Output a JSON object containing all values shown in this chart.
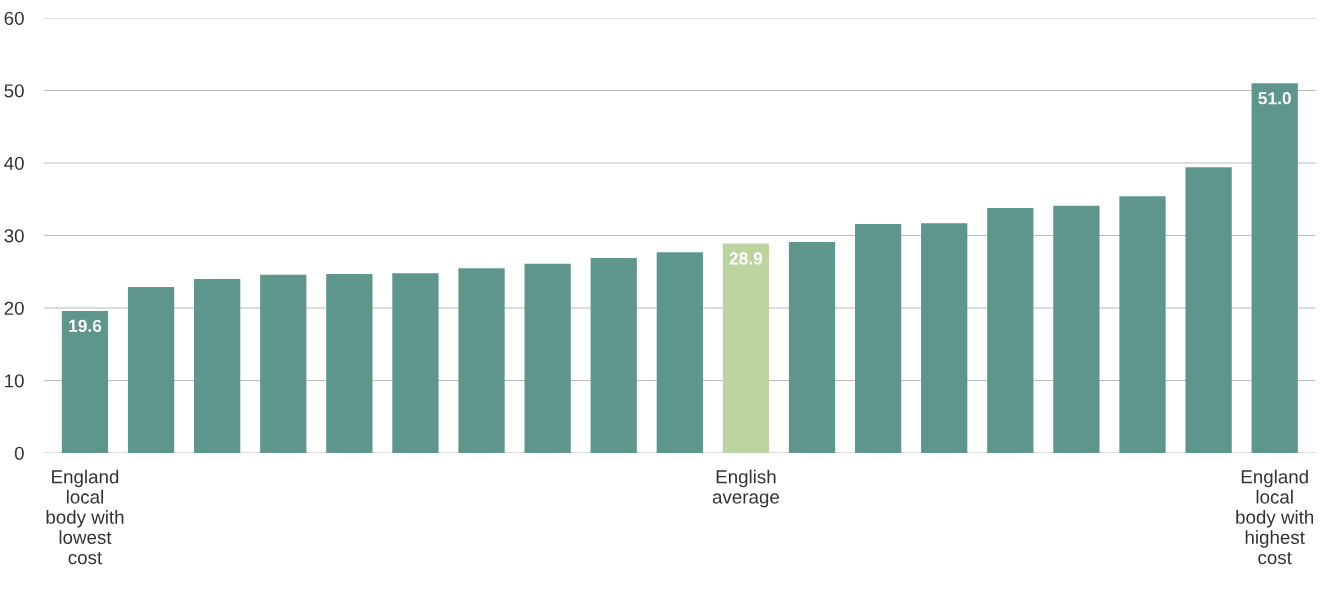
{
  "chart_data": {
    "type": "bar",
    "categories": [
      "England\nlocal\nbody with\nlowest\ncost",
      null,
      null,
      null,
      null,
      null,
      null,
      null,
      null,
      null,
      "English\naverage",
      null,
      null,
      null,
      null,
      null,
      null,
      null,
      "England\nlocal\nbody with\nhighest\ncost"
    ],
    "values": [
      19.6,
      22.9,
      24.0,
      24.6,
      24.7,
      24.8,
      25.5,
      26.1,
      26.9,
      27.7,
      28.9,
      29.1,
      31.6,
      31.7,
      33.8,
      34.1,
      35.4,
      39.4,
      51.0
    ],
    "colors": [
      "#5e968b",
      "#5e968b",
      "#5e968b",
      "#5e968b",
      "#5e968b",
      "#5e968b",
      "#5e968b",
      "#5e968b",
      "#5e968b",
      "#5e968b",
      "#bcd4a0",
      "#5e968b",
      "#5e968b",
      "#5e968b",
      "#5e968b",
      "#5e968b",
      "#5e968b",
      "#5e968b",
      "#5e968b"
    ],
    "value_labels": [
      "19.6",
      null,
      null,
      null,
      null,
      null,
      null,
      null,
      null,
      null,
      "28.9",
      null,
      null,
      null,
      null,
      null,
      null,
      null,
      "51.0"
    ],
    "ylim": [
      0,
      60
    ],
    "yticks": [
      0,
      10,
      20,
      30,
      40,
      50,
      60
    ],
    "grid": "y"
  }
}
